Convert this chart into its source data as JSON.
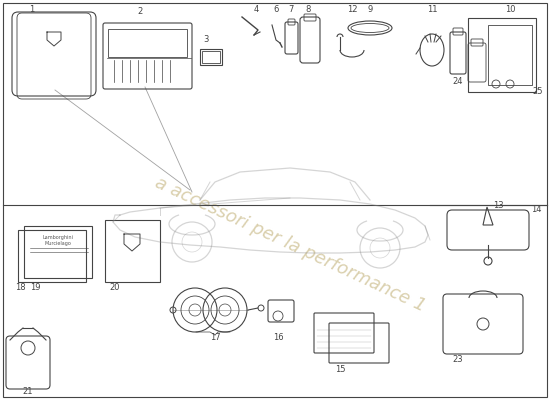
{
  "background_color": "#ffffff",
  "line_color": "#444444",
  "light_line_color": "#888888",
  "watermark_text": "a accessori per la performance 1",
  "watermark_color": "#d4c8a0",
  "car_color": "#cccccc"
}
